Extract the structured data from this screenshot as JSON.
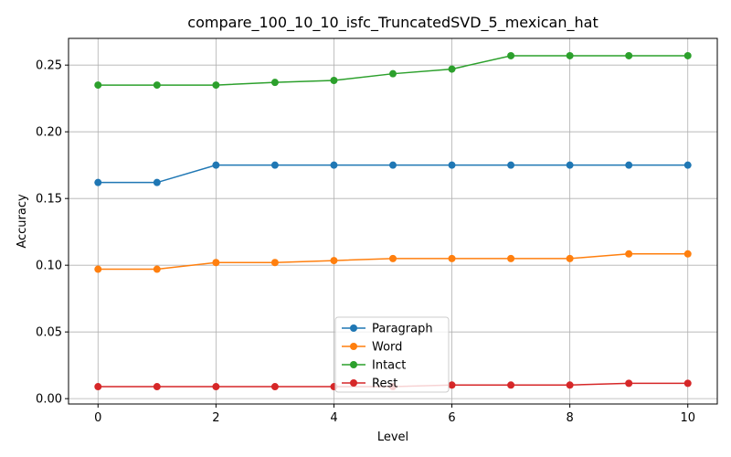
{
  "chart_data": {
    "type": "line",
    "title": "compare_100_10_10_isfc_TruncatedSVD_5_mexican_hat",
    "xlabel": "Level",
    "ylabel": "Accuracy",
    "xlim": [
      -0.5,
      10.5
    ],
    "ylim": [
      -0.004,
      0.27
    ],
    "xticks": [
      0,
      2,
      4,
      6,
      8,
      10
    ],
    "yticks": [
      0.0,
      0.05,
      0.1,
      0.15,
      0.2,
      0.25
    ],
    "ytick_labels": [
      "0.00",
      "0.05",
      "0.10",
      "0.15",
      "0.20",
      "0.25"
    ],
    "grid": true,
    "legend_position": "lower-center",
    "x": [
      0,
      1,
      2,
      3,
      4,
      5,
      6,
      7,
      8,
      9,
      10
    ],
    "series": [
      {
        "name": "Paragraph",
        "color": "#1f77b4",
        "values": [
          0.162,
          0.162,
          0.175,
          0.175,
          0.175,
          0.175,
          0.175,
          0.175,
          0.175,
          0.175,
          0.175
        ]
      },
      {
        "name": "Word",
        "color": "#ff7f0e",
        "values": [
          0.097,
          0.097,
          0.102,
          0.102,
          0.1035,
          0.105,
          0.105,
          0.105,
          0.105,
          0.1085,
          0.1085
        ]
      },
      {
        "name": "Intact",
        "color": "#2ca02c",
        "values": [
          0.235,
          0.235,
          0.235,
          0.237,
          0.2385,
          0.2435,
          0.247,
          0.257,
          0.257,
          0.257,
          0.257
        ]
      },
      {
        "name": "Rest",
        "color": "#d62728",
        "values": [
          0.009,
          0.009,
          0.009,
          0.009,
          0.009,
          0.009,
          0.0102,
          0.0102,
          0.0102,
          0.0115,
          0.0115
        ]
      }
    ]
  }
}
